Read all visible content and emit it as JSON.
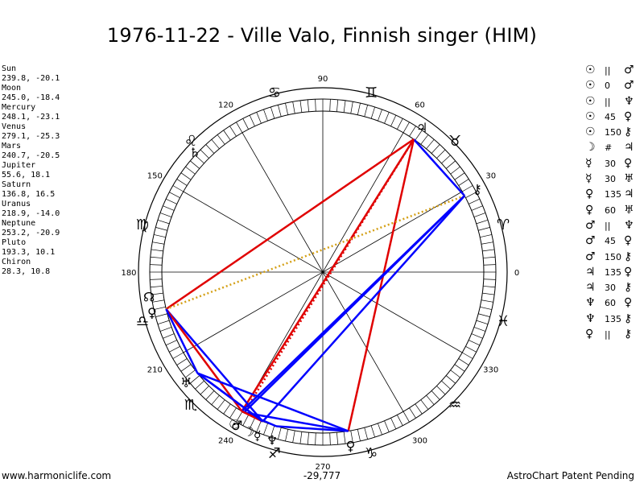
{
  "title": "1976-11-22 - Ville Valo, Finnish singer (HIM)",
  "planets": [
    {
      "name": "Sun",
      "coords": "239.8, -20.1"
    },
    {
      "name": "Moon",
      "coords": "245.0, -18.4"
    },
    {
      "name": "Mercury",
      "coords": "248.1, -23.1"
    },
    {
      "name": "Venus",
      "coords": "279.1, -25.3"
    },
    {
      "name": "Mars",
      "coords": "240.7, -20.5"
    },
    {
      "name": "Jupiter",
      "coords": "55.6, 18.1"
    },
    {
      "name": "Saturn",
      "coords": "136.8, 16.5"
    },
    {
      "name": "Uranus",
      "coords": "218.9, -14.0"
    },
    {
      "name": "Neptune",
      "coords": "253.2, -20.9"
    },
    {
      "name": "Pluto",
      "coords": "193.3, 10.1"
    },
    {
      "name": "Chiron",
      "coords": "28.3, 10.8"
    }
  ],
  "aspects": [
    {
      "a": "☉",
      "t": "||",
      "b": "♂"
    },
    {
      "a": "☉",
      "t": "0",
      "b": "♂"
    },
    {
      "a": "☉",
      "t": "||",
      "b": "♆"
    },
    {
      "a": "☉",
      "t": "45",
      "b": "♀"
    },
    {
      "a": "☉",
      "t": "150",
      "b": "⚷"
    },
    {
      "a": "☽",
      "t": "#",
      "b": "♃"
    },
    {
      "a": "☿",
      "t": "30",
      "b": "♀"
    },
    {
      "a": "☿",
      "t": "30",
      "b": "♅"
    },
    {
      "a": "♀",
      "t": "135",
      "b": "♃"
    },
    {
      "a": "♀",
      "t": "60",
      "b": "♅"
    },
    {
      "a": "♂",
      "t": "||",
      "b": "♆"
    },
    {
      "a": "♂",
      "t": "45",
      "b": "♀"
    },
    {
      "a": "♂",
      "t": "150",
      "b": "⚷"
    },
    {
      "a": "♃",
      "t": "135",
      "b": "♀"
    },
    {
      "a": "♃",
      "t": "30",
      "b": "⚷"
    },
    {
      "a": "♆",
      "t": "60",
      "b": "♀"
    },
    {
      "a": "♆",
      "t": "135",
      "b": "⚷"
    },
    {
      "a": "♀",
      "t": "||",
      "b": "⚷"
    }
  ],
  "degree_labels": [
    {
      "deg": 0,
      "text": "0"
    },
    {
      "deg": 30,
      "text": "30"
    },
    {
      "deg": 60,
      "text": "60"
    },
    {
      "deg": 90,
      "text": "90"
    },
    {
      "deg": 120,
      "text": "120"
    },
    {
      "deg": 150,
      "text": "150"
    },
    {
      "deg": 180,
      "text": "180"
    },
    {
      "deg": 210,
      "text": "210"
    },
    {
      "deg": 240,
      "text": "240"
    },
    {
      "deg": 270,
      "text": "270"
    },
    {
      "deg": 300,
      "text": "300"
    },
    {
      "deg": 330,
      "text": "330"
    }
  ],
  "zodiac_signs": [
    {
      "deg": 15,
      "glyph": "♈"
    },
    {
      "deg": 45,
      "glyph": "♉"
    },
    {
      "deg": 75,
      "glyph": "♊"
    },
    {
      "deg": 105,
      "glyph": "♋"
    },
    {
      "deg": 135,
      "glyph": "♌"
    },
    {
      "deg": 165,
      "glyph": "♍"
    },
    {
      "deg": 195,
      "glyph": "♎"
    },
    {
      "deg": 225,
      "glyph": "♏"
    },
    {
      "deg": 255,
      "glyph": "♐"
    },
    {
      "deg": 285,
      "glyph": "♑"
    },
    {
      "deg": 315,
      "glyph": "♒"
    },
    {
      "deg": 345,
      "glyph": "♓"
    }
  ],
  "wheel_planets": [
    {
      "id": "sun",
      "glyph": "☉",
      "deg": 239.8
    },
    {
      "id": "moon",
      "glyph": "☽",
      "deg": 245.0
    },
    {
      "id": "mercury",
      "glyph": "☿",
      "deg": 248.1
    },
    {
      "id": "venus",
      "glyph": "♀",
      "deg": 279.1
    },
    {
      "id": "mars",
      "glyph": "♂",
      "deg": 240.7
    },
    {
      "id": "jupiter",
      "glyph": "♃",
      "deg": 55.6
    },
    {
      "id": "saturn",
      "glyph": "♄",
      "deg": 136.8
    },
    {
      "id": "uranus",
      "glyph": "♅",
      "deg": 218.9
    },
    {
      "id": "neptune",
      "glyph": "♆",
      "deg": 253.2
    },
    {
      "id": "pluto",
      "glyph": "♀",
      "deg": 193.3
    },
    {
      "id": "chiron",
      "glyph": "⚷",
      "deg": 28.3
    },
    {
      "id": "node",
      "glyph": "☊",
      "deg": 188.0
    }
  ],
  "aspect_lines": [
    {
      "from": "pluto",
      "to": "jupiter",
      "color": "#e00000",
      "style": "solid"
    },
    {
      "from": "jupiter",
      "to": "sun",
      "color": "#e00000",
      "style": "solid"
    },
    {
      "from": "jupiter",
      "to": "venus",
      "color": "#e00000",
      "style": "solid"
    },
    {
      "from": "jupiter",
      "to": "chiron",
      "color": "#0000ff",
      "style": "solid"
    },
    {
      "from": "jupiter",
      "to": "mars",
      "color": "#e00000",
      "style": "dotted"
    },
    {
      "from": "chiron",
      "to": "pluto",
      "color": "#d4a017",
      "style": "dotted"
    },
    {
      "from": "chiron",
      "to": "sun",
      "color": "#0000ff",
      "style": "solid"
    },
    {
      "from": "chiron",
      "to": "mars",
      "color": "#0000ff",
      "style": "solid"
    },
    {
      "from": "chiron",
      "to": "mercury",
      "color": "#0000ff",
      "style": "solid"
    },
    {
      "from": "pluto",
      "to": "mercury",
      "color": "#0000ff",
      "style": "solid"
    },
    {
      "from": "pluto",
      "to": "sun",
      "color": "#e00000",
      "style": "solid"
    },
    {
      "from": "pluto",
      "to": "uranus",
      "color": "#0000ff",
      "style": "solid"
    },
    {
      "from": "uranus",
      "to": "mercury",
      "color": "#0000ff",
      "style": "solid"
    },
    {
      "from": "uranus",
      "to": "venus",
      "color": "#0000ff",
      "style": "solid"
    },
    {
      "from": "sun",
      "to": "neptune",
      "color": "#0000ff",
      "style": "solid"
    },
    {
      "from": "mars",
      "to": "venus",
      "color": "#0000ff",
      "style": "solid"
    },
    {
      "from": "neptune",
      "to": "venus",
      "color": "#0000ff",
      "style": "solid"
    },
    {
      "from": "sun",
      "to": "mercury",
      "color": "#e00000",
      "style": "solid"
    },
    {
      "from": "mercury",
      "to": "uranus",
      "color": "#0000ff",
      "style": "solid"
    }
  ],
  "footer": {
    "left": "www.harmoniclife.com",
    "center": "-29,777",
    "right": "AstroChart Patent Pending"
  },
  "colors": {
    "hard_aspect": "#e00000",
    "soft_aspect": "#0000ff",
    "minor_aspect": "#d4a017"
  }
}
